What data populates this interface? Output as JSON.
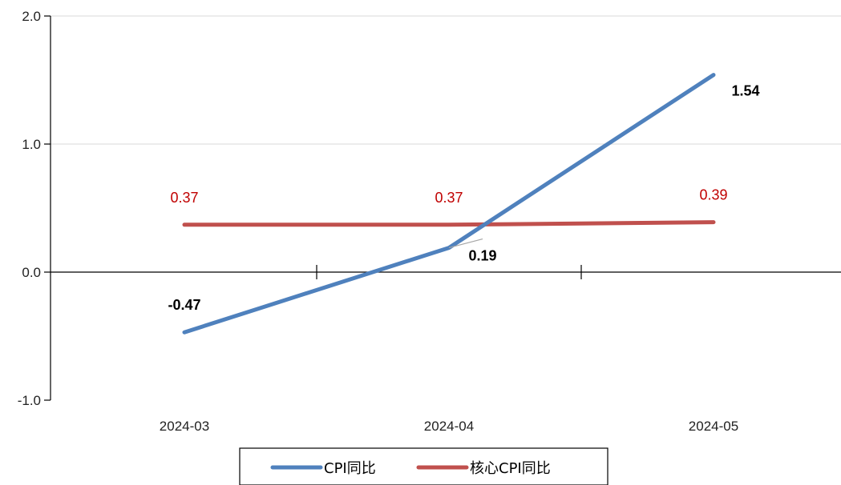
{
  "chart_data": {
    "type": "line",
    "categories": [
      "2024-03",
      "2024-04",
      "2024-05"
    ],
    "ylim": [
      -1.0,
      2.0
    ],
    "yticks": [
      -1.0,
      0.0,
      1.0,
      2.0
    ],
    "ytick_labels": [
      "-1.0",
      "0.0",
      "1.0",
      "2.0"
    ],
    "grid": true,
    "legend_position": "bottom",
    "series": [
      {
        "name": "CPI同比",
        "color": "#4f81bd",
        "label_color": "#000000",
        "label_bold": true,
        "values": [
          -0.47,
          0.19,
          1.54
        ],
        "labels": [
          "-0.47",
          "0.19",
          "1.54"
        ]
      },
      {
        "name": "核心CPI同比",
        "color": "#c0504d",
        "label_color": "#c00000",
        "label_bold": false,
        "values": [
          0.37,
          0.37,
          0.39
        ],
        "labels": [
          "0.37",
          "0.37",
          "0.39"
        ]
      }
    ]
  }
}
